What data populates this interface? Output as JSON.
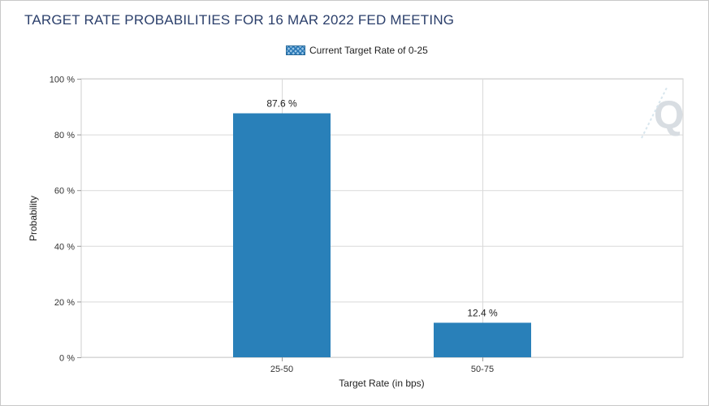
{
  "chart_data": {
    "type": "bar",
    "title": "TARGET RATE PROBABILITIES FOR 16 MAR 2022 FED MEETING",
    "legend": {
      "label": "Current Target Rate of 0-25",
      "position": "top-center"
    },
    "categories": [
      "25-50",
      "50-75"
    ],
    "values": [
      87.6,
      12.4
    ],
    "data_labels": [
      "87.6 %",
      "12.4 %"
    ],
    "xlabel": "Target Rate (in bps)",
    "ylabel": "Probability",
    "ylim": [
      0,
      100
    ],
    "yticks": [
      0,
      20,
      40,
      60,
      80,
      100
    ],
    "ytick_labels": [
      "0 %",
      "20 %",
      "40 %",
      "60 %",
      "80 %",
      "100 %"
    ],
    "grid": true,
    "bar_color": "#2980b9",
    "watermark": "Q"
  }
}
